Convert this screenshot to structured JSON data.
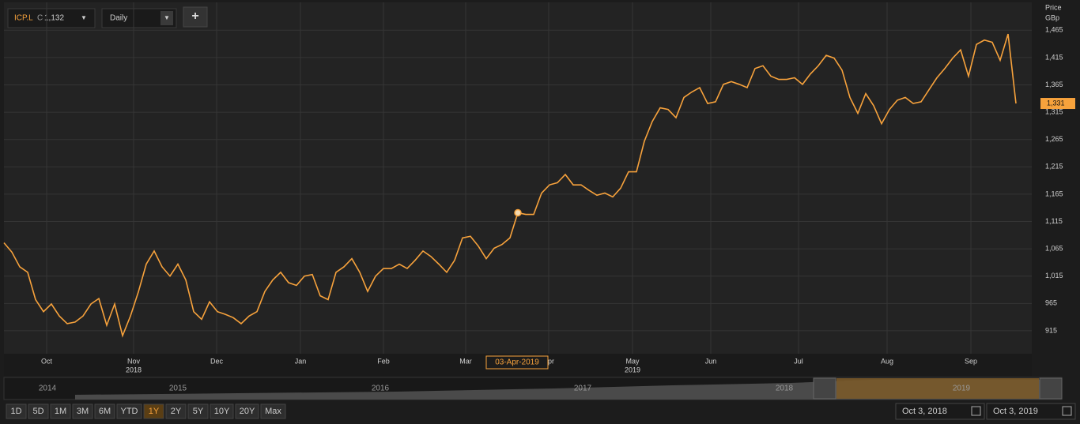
{
  "toolbar": {
    "symbol": "ICP.L",
    "close_prefix": "C",
    "close_value": "1,132",
    "interval": "Daily",
    "add": "+"
  },
  "chart_data": {
    "type": "line",
    "y_axis_title": [
      "Price",
      "GBp"
    ],
    "series": [
      {
        "name": "ICP.L",
        "color": "#f7a23c",
        "values": [
          1076,
          1059,
          1032,
          1022,
          972,
          950,
          964,
          942,
          928,
          931,
          942,
          964,
          974,
          925,
          964,
          906,
          942,
          986,
          1037,
          1061,
          1032,
          1015,
          1037,
          1008,
          950,
          936,
          968,
          950,
          945,
          939,
          928,
          942,
          950,
          987,
          1008,
          1022,
          1003,
          998,
          1015,
          1018,
          979,
          972,
          1022,
          1032,
          1047,
          1022,
          987,
          1015,
          1029,
          1029,
          1037,
          1029,
          1044,
          1061,
          1051,
          1037,
          1022,
          1044,
          1085,
          1088,
          1070,
          1047,
          1066,
          1073,
          1085,
          1131,
          1128,
          1128,
          1167,
          1182,
          1186,
          1201,
          1182,
          1182,
          1172,
          1163,
          1167,
          1160,
          1176,
          1206,
          1206,
          1262,
          1298,
          1323,
          1320,
          1305,
          1342,
          1352,
          1360,
          1331,
          1334,
          1366,
          1371,
          1366,
          1360,
          1395,
          1400,
          1381,
          1375,
          1375,
          1378,
          1366,
          1385,
          1400,
          1419,
          1414,
          1392,
          1342,
          1313,
          1349,
          1327,
          1294,
          1320,
          1337,
          1342,
          1331,
          1334,
          1356,
          1378,
          1395,
          1414,
          1429,
          1381,
          1439,
          1447,
          1443,
          1410,
          1458,
          1331
        ]
      }
    ],
    "xlim": [
      0,
      130
    ],
    "xticks": [
      {
        "value": 5.4,
        "label": "Oct"
      },
      {
        "value": 16.4,
        "label": "Nov"
      },
      {
        "value": 26.9,
        "label": "Dec"
      },
      {
        "value": 37.5,
        "label": "Jan"
      },
      {
        "value": 48,
        "label": "Feb"
      },
      {
        "value": 58.4,
        "label": "Mar"
      },
      {
        "value": 68.9,
        "label": "Apr"
      },
      {
        "value": 79.5,
        "label": "May"
      },
      {
        "value": 89.4,
        "label": "Jun"
      },
      {
        "value": 100.5,
        "label": "Jul"
      },
      {
        "value": 111.7,
        "label": "Aug"
      },
      {
        "value": 122.3,
        "label": "Sep"
      }
    ],
    "year_ticks": [
      {
        "value": 16.4,
        "label": "2018"
      },
      {
        "value": 79.5,
        "label": "2019"
      }
    ],
    "ylim": [
      873,
      1516
    ],
    "yticks": [
      {
        "value": 915,
        "label": "915"
      },
      {
        "value": 965,
        "label": "965"
      },
      {
        "value": 1015,
        "label": "1,015"
      },
      {
        "value": 1065,
        "label": "1,065"
      },
      {
        "value": 1115,
        "label": "1,115"
      },
      {
        "value": 1165,
        "label": "1,165"
      },
      {
        "value": 1215,
        "label": "1,215"
      },
      {
        "value": 1265,
        "label": "1,265"
      },
      {
        "value": 1315,
        "label": "1,315"
      },
      {
        "value": 1365,
        "label": "1,365"
      },
      {
        "value": 1415,
        "label": "1,415"
      },
      {
        "value": 1465,
        "label": "1,465"
      }
    ],
    "grid": true,
    "annotations": [
      {
        "x": 65,
        "label": "03-Apr-2019"
      }
    ],
    "last_price_label": "1,331"
  },
  "navigator": {
    "years": [
      "2014",
      "2015",
      "2016",
      "2017",
      "2018",
      "2019"
    ]
  },
  "range_buttons": {
    "items": [
      "1D",
      "5D",
      "1M",
      "3M",
      "6M",
      "YTD",
      "1Y",
      "2Y",
      "5Y",
      "10Y",
      "20Y",
      "Max"
    ],
    "active": "1Y"
  },
  "date_range": {
    "from": "Oct 3, 2018",
    "to": "Oct 3, 2019"
  }
}
